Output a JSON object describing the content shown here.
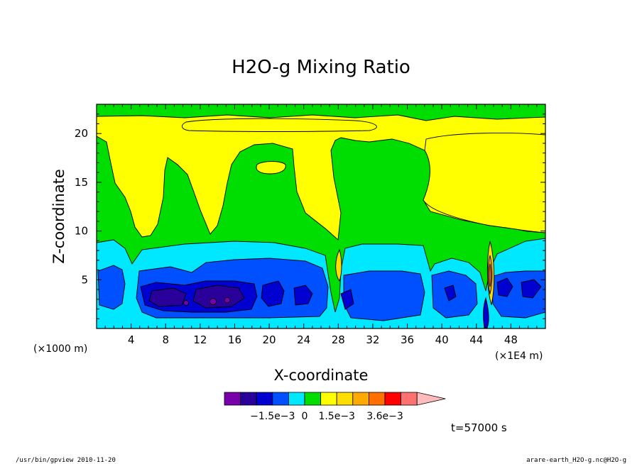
{
  "chart_data": {
    "type": "heatmap",
    "title": "H2O-g Mixing Ratio",
    "xlabel": "X-coordinate",
    "ylabel": "Z-coordinate",
    "x_unit": "(×1E4 m)",
    "y_unit": "(×1000 m)",
    "xlim": [
      0,
      52
    ],
    "ylim": [
      0,
      23
    ],
    "x_ticks": [
      4,
      8,
      12,
      16,
      20,
      24,
      28,
      32,
      36,
      40,
      44,
      48
    ],
    "y_ticks": [
      5,
      10,
      15,
      20
    ],
    "colorbar": {
      "colors": [
        "#7700aa",
        "#2a009a",
        "#0000d0",
        "#0050ff",
        "#00e8ff",
        "#00dd00",
        "#ffff00",
        "#ffdd00",
        "#ffaa00",
        "#ff7000",
        "#ff0000",
        "#ff7070",
        "#ffbbbb"
      ],
      "labels": [
        "−1.5e−3",
        "0",
        "1.5e−3",
        "3.6e−3"
      ],
      "label_positions": [
        3,
        5,
        7,
        10
      ],
      "extend": "max"
    },
    "time_label": "t=57000 s"
  },
  "footer": {
    "left": "/usr/bin/gpview   2010-11-20",
    "right": "arare-earth_H2O-g.nc@H2O-g"
  },
  "colors": {
    "yellow": "#ffff00",
    "green": "#00dd00",
    "cyan": "#00e8ff",
    "blue": "#0050ff",
    "dark_blue": "#0000d0",
    "navy": "#2a009a",
    "purple": "#7700aa",
    "gold": "#ffdd00",
    "orange": "#ffaa00",
    "red_orange": "#ff7000"
  }
}
